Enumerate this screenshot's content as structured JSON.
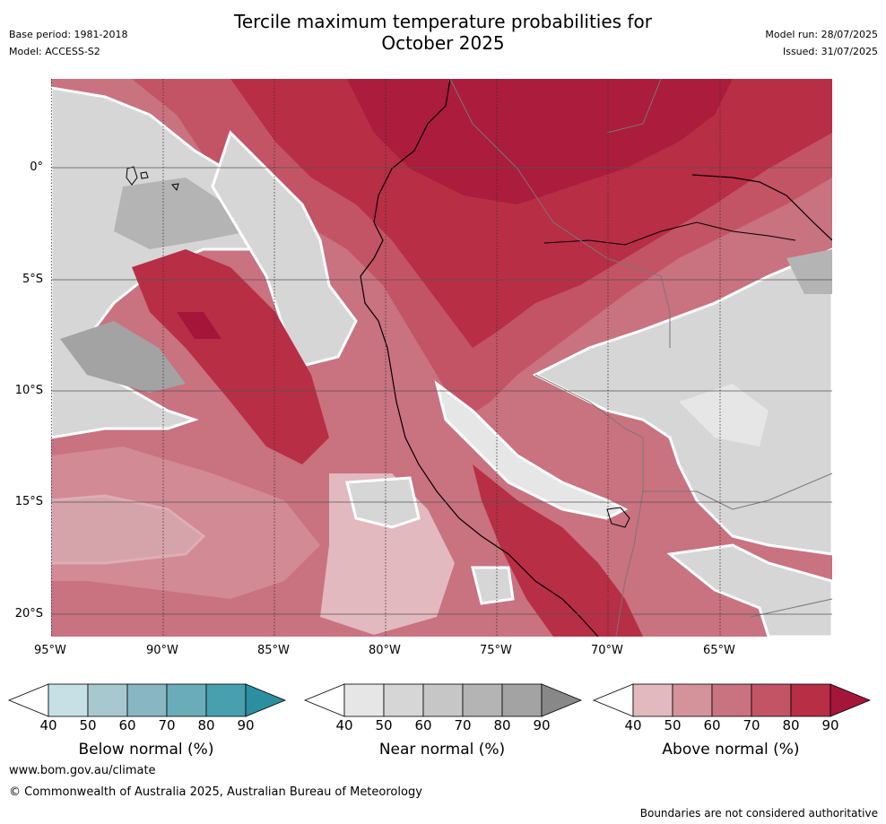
{
  "header": {
    "title_line1": "Tercile maximum temperature probabilities for",
    "title_line2": "October 2025",
    "base_period": "Base period: 1981-2018",
    "model": "Model: ACCESS-S2",
    "model_run": "Model run: 28/07/2025",
    "issued": "Issued: 31/07/2025"
  },
  "map": {
    "lat_labels": [
      "0°",
      "5°S",
      "10°S",
      "15°S",
      "20°S"
    ],
    "lon_labels": [
      "95°W",
      "90°W",
      "85°W",
      "80°W",
      "75°W",
      "70°W",
      "65°W"
    ],
    "colors": {
      "above": [
        "#ffffff",
        "#e2b9bf",
        "#d4939b",
        "#c97280",
        "#c35466",
        "#b82e45",
        "#a5153a"
      ],
      "near": [
        "#ffffff",
        "#e6e6e6",
        "#d6d6d6",
        "#c6c6c6",
        "#b4b4b4",
        "#a3a3a3",
        "#888888"
      ],
      "below": [
        "#ffffff",
        "#c6e0e6",
        "#a8c8cf",
        "#88b7c3",
        "#6aadb8",
        "#48a0ae",
        "#2c8fa0"
      ]
    }
  },
  "colorbars": [
    {
      "label": "Below normal (%)",
      "ticks": [
        "40",
        "50",
        "60",
        "70",
        "80",
        "90"
      ]
    },
    {
      "label": "Near normal (%)",
      "ticks": [
        "40",
        "50",
        "60",
        "70",
        "80",
        "90"
      ]
    },
    {
      "label": "Above normal (%)",
      "ticks": [
        "40",
        "50",
        "60",
        "70",
        "80",
        "90"
      ]
    }
  ],
  "footer": {
    "url": "www.bom.gov.au/climate",
    "copyright": "© Commonwealth of Australia 2025, Australian Bureau of Meteorology",
    "disclaimer": "Boundaries are not considered authoritative"
  }
}
